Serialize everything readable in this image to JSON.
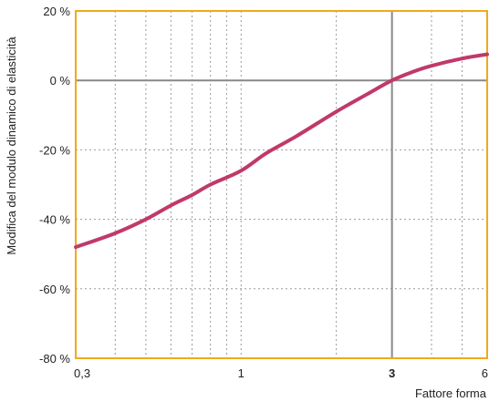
{
  "chart_data": {
    "type": "line",
    "title": "",
    "xlabel": "Fattore forma",
    "ylabel": "Modifica del modulo dinamico di elasticità",
    "x_scale": "log",
    "xlim": [
      0.3,
      6
    ],
    "ylim": [
      -80,
      20
    ],
    "x_ticks": [
      {
        "value": 0.3,
        "label": "0,3",
        "bold": false
      },
      {
        "value": 1,
        "label": "1",
        "bold": false
      },
      {
        "value": 3,
        "label": "3",
        "bold": true
      },
      {
        "value": 6,
        "label": "6",
        "bold": false
      }
    ],
    "x_minor_grid": [
      0.4,
      0.5,
      0.6,
      0.7,
      0.8,
      0.9,
      2,
      4,
      5
    ],
    "y_ticks": [
      {
        "value": 20,
        "label": "20 %"
      },
      {
        "value": 0,
        "label": "0 %"
      },
      {
        "value": -20,
        "label": "-20 %"
      },
      {
        "value": -40,
        "label": "-40 %"
      },
      {
        "value": -60,
        "label": "-60 %"
      },
      {
        "value": -80,
        "label": "-80 %"
      }
    ],
    "reference_lines": {
      "x": 3,
      "y": 0
    },
    "grid": true,
    "colors": {
      "series": "#c0396b",
      "frame": "#f0a91c",
      "grid": "#9a9a9a",
      "reference": "#888888"
    },
    "series": [
      {
        "x": [
          0.3,
          0.4,
          0.5,
          0.6,
          0.7,
          0.8,
          1.0,
          1.2,
          1.5,
          2.0,
          2.5,
          3.0,
          3.5,
          4.0,
          5.0,
          6.0
        ],
        "y": [
          -48,
          -44,
          -40,
          -36,
          -33,
          -30,
          -26,
          -21,
          -16,
          -9,
          -4,
          0,
          2.5,
          4.2,
          6.3,
          7.5
        ]
      }
    ]
  }
}
